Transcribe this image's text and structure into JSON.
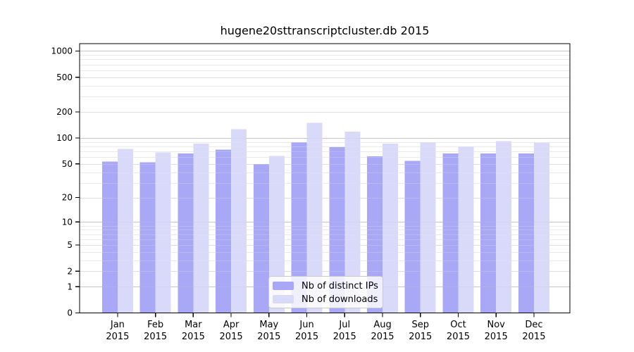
{
  "title": "hugene20sttranscriptcluster.db 2015",
  "chart_data": {
    "type": "bar",
    "title": "hugene20sttranscriptcluster.db 2015",
    "categories": [
      "Jan",
      "Feb",
      "Mar",
      "Apr",
      "May",
      "Jun",
      "Jul",
      "Aug",
      "Sep",
      "Oct",
      "Nov",
      "Dec"
    ],
    "category_year": "2015",
    "series": [
      {
        "name": "Nb of distinct IPs",
        "color": "#a8a8f6",
        "values": [
          53,
          52,
          66,
          73,
          50,
          89,
          78,
          61,
          54,
          66,
          66,
          66
        ]
      },
      {
        "name": "Nb of downloads",
        "color": "#d9d9f9",
        "values": [
          75,
          68,
          86,
          126,
          62,
          149,
          118,
          86,
          89,
          80,
          92,
          88
        ]
      }
    ],
    "y_ticks": [
      0,
      1,
      2,
      5,
      10,
      20,
      50,
      100,
      200,
      500,
      1000
    ],
    "y_scale": "log10(1+x)",
    "ylim": [
      0,
      1215
    ],
    "xlabel": "",
    "ylabel": "",
    "grid": true,
    "legend_position": "inside-bottom-center"
  },
  "colors": {
    "bar_distinct_ips": "#a8a8f6",
    "bar_downloads": "#d9d9f9",
    "grid_major": "#c6c6c6",
    "grid_mid": "#dedede",
    "grid_minor": "#ebebeb",
    "axis": "#000000",
    "text": "#000000",
    "legend_border": "#c9c9c9"
  }
}
